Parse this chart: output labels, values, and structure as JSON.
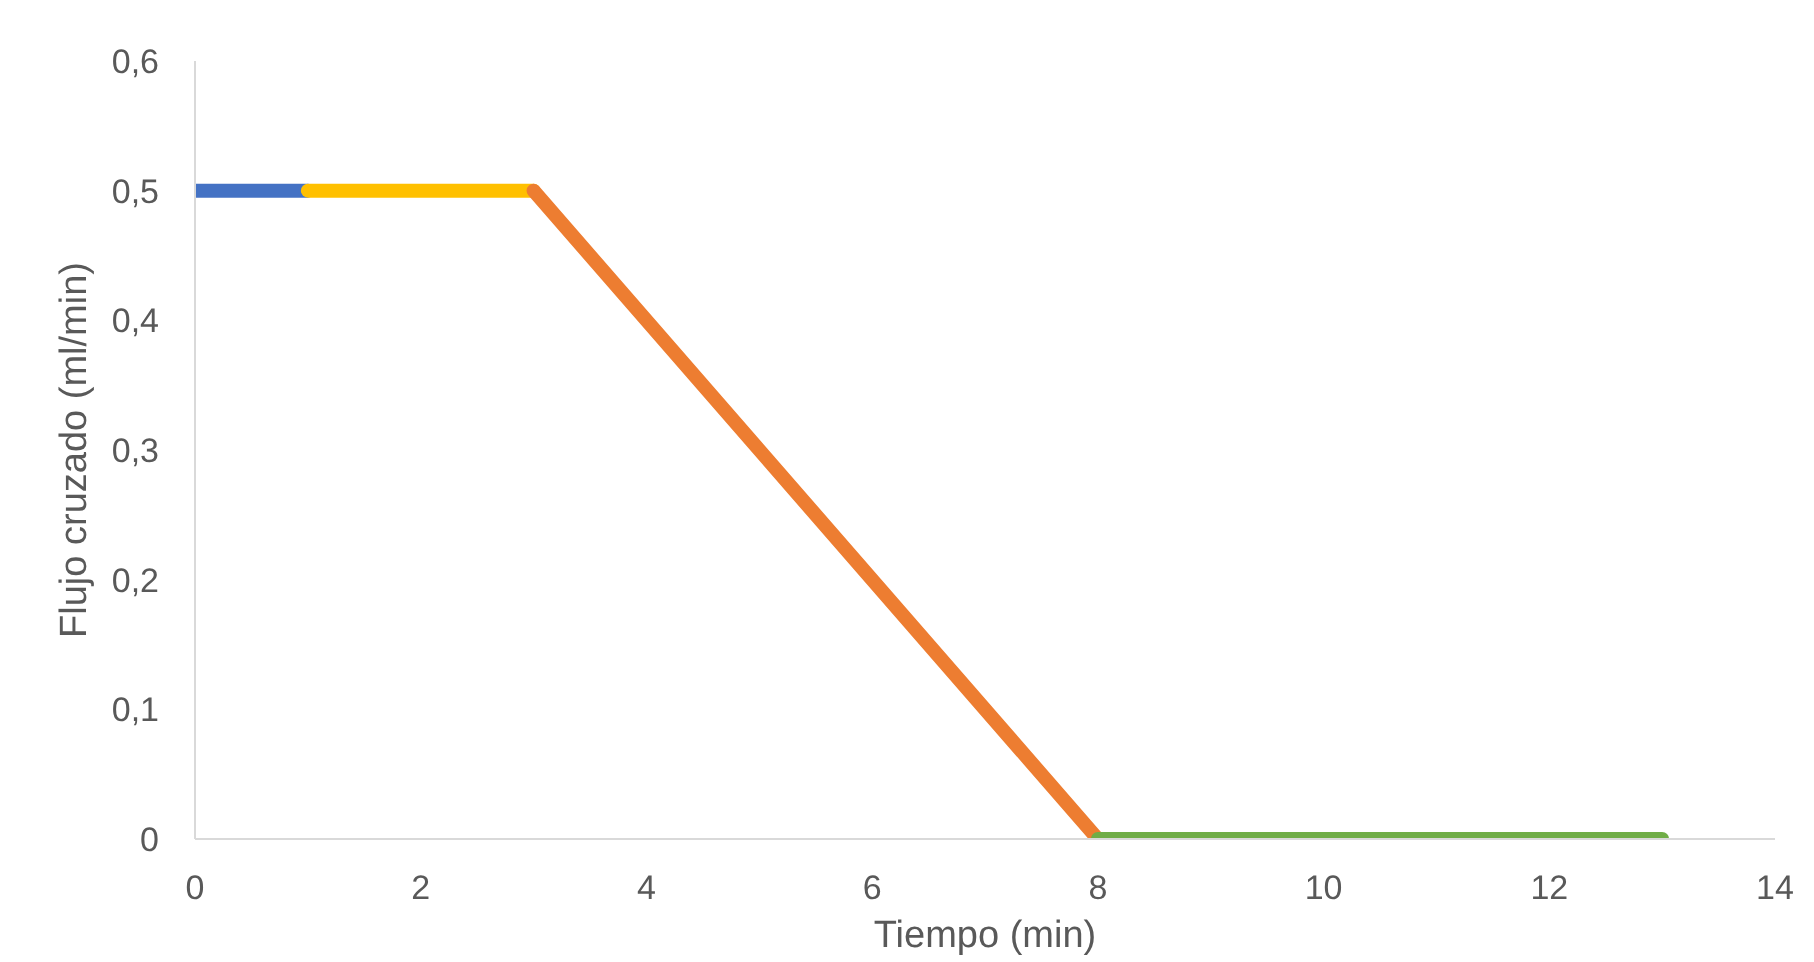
{
  "chart_data": {
    "type": "line",
    "xlabel": "Tiempo (min)",
    "ylabel": "Flujo cruzado (ml/min)",
    "xlim": [
      0,
      14
    ],
    "xticks": [
      0,
      2,
      4,
      6,
      8,
      10,
      12,
      14
    ],
    "ylim": [
      0,
      0.6
    ],
    "yticks": [
      0,
      {
        "value": 0.1,
        "label": "0,1"
      },
      {
        "value": 0.2,
        "label": "0,2"
      },
      {
        "value": 0.3,
        "label": "0,3"
      },
      {
        "value": 0.4,
        "label": "0,4"
      },
      {
        "value": 0.5,
        "label": "0,5"
      },
      {
        "value": 0.6,
        "label": "0,6"
      }
    ],
    "grid": false,
    "marker": "none",
    "line_style": "solid",
    "series": [
      {
        "color": "#4472c4",
        "x": [
          0,
          1
        ],
        "values": [
          0.5,
          0.5
        ]
      },
      {
        "color": "#ffc000",
        "x": [
          1,
          3
        ],
        "values": [
          0.5,
          0.5
        ]
      },
      {
        "color": "#ed7d31",
        "x": [
          3,
          8
        ],
        "values": [
          0.5,
          0
        ]
      },
      {
        "color": "#70ad47",
        "x": [
          8,
          13
        ],
        "values": [
          0,
          0
        ]
      }
    ]
  }
}
